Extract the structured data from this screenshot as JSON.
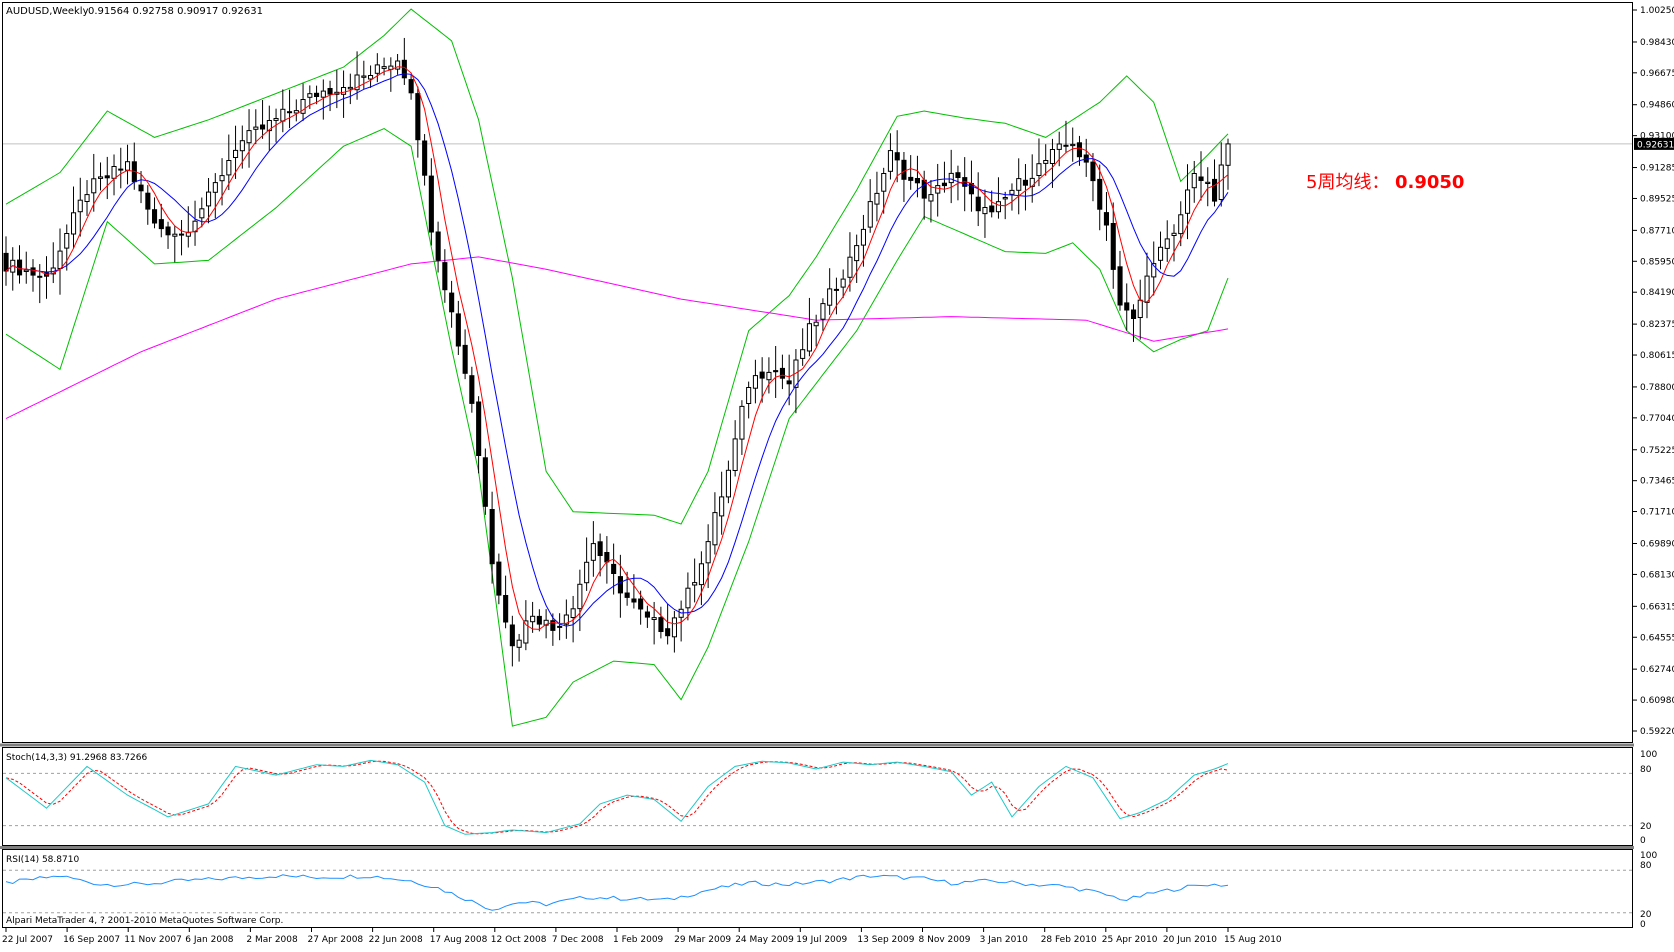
{
  "header": {
    "symbol": "AUDUSD,Weekly",
    "ohlc": "0.91564 0.92758 0.90917 0.92631"
  },
  "annotation": {
    "label": "5周均线：",
    "value": "0.9050",
    "color": "#ff0000"
  },
  "stoch": {
    "label": "Stoch(14,3,3) 91.2968 83.7266",
    "levels": [
      "100",
      "80",
      "20",
      "0"
    ]
  },
  "rsi": {
    "label": "RSI(14) 58.8710",
    "levels": [
      "100",
      "80",
      "20",
      "0"
    ]
  },
  "copyright": "Alpari MetaTrader 4, ? 2001-2010 MetaQuotes Software Corp.",
  "colors": {
    "bull_body": "#ffffff",
    "bear_body": "#000000",
    "ma5": "#ff0000",
    "ma10": "#0000ff",
    "bollinger": "#00c000",
    "ma200": "#ff00ff",
    "stoch_main": "#1ec8c8",
    "stoch_signal": "#ff0000",
    "rsi": "#1e90ff",
    "current_price_line": "#c0c0c0"
  },
  "chart_data": {
    "type": "candlestick",
    "symbol": "AUDUSD",
    "timeframe": "Weekly",
    "price_axis": {
      "ticks": [
        "1.00250",
        "0.98430",
        "0.96675",
        "0.94860",
        "0.93100",
        "0.91285",
        "0.89525",
        "0.87710",
        "0.85950",
        "0.84190",
        "0.82375",
        "0.80615",
        "0.78800",
        "0.77040",
        "0.75225",
        "0.73465",
        "0.71710",
        "0.69890",
        "0.68130",
        "0.66315",
        "0.64555",
        "0.62740",
        "0.60980",
        "0.59220"
      ],
      "ylim": [
        0.5922,
        1.0025
      ],
      "current_price": "0.92631"
    },
    "time_axis": [
      "22 Jul 2007",
      "16 Sep 2007",
      "11 Nov 2007",
      "6 Jan 2008",
      "2 Mar 2008",
      "27 Apr 2008",
      "22 Jun 2008",
      "17 Aug 2008",
      "12 Oct 2008",
      "7 Dec 2008",
      "1 Feb 2009",
      "29 Mar 2009",
      "24 May 2009",
      "19 Jul 2009",
      "13 Sep 2009",
      "8 Nov 2009",
      "3 Jan 2010",
      "28 Feb 2010",
      "25 Apr 2010",
      "20 Jun 2010",
      "15 Aug 2010"
    ],
    "close_anchors": [
      [
        0,
        0.858
      ],
      [
        6,
        0.85
      ],
      [
        12,
        0.9
      ],
      [
        18,
        0.915
      ],
      [
        22,
        0.88
      ],
      [
        26,
        0.875
      ],
      [
        30,
        0.895
      ],
      [
        34,
        0.925
      ],
      [
        38,
        0.935
      ],
      [
        42,
        0.945
      ],
      [
        46,
        0.955
      ],
      [
        50,
        0.96
      ],
      [
        54,
        0.966
      ],
      [
        58,
        0.975
      ],
      [
        60,
        0.958
      ],
      [
        63,
        0.88
      ],
      [
        66,
        0.83
      ],
      [
        69,
        0.78
      ],
      [
        72,
        0.69
      ],
      [
        75,
        0.64
      ],
      [
        78,
        0.66
      ],
      [
        81,
        0.65
      ],
      [
        84,
        0.665
      ],
      [
        87,
        0.7
      ],
      [
        89,
        0.685
      ],
      [
        92,
        0.668
      ],
      [
        95,
        0.655
      ],
      [
        98,
        0.65
      ],
      [
        101,
        0.67
      ],
      [
        104,
        0.7
      ],
      [
        107,
        0.74
      ],
      [
        110,
        0.79
      ],
      [
        113,
        0.8
      ],
      [
        116,
        0.79
      ],
      [
        119,
        0.82
      ],
      [
        122,
        0.84
      ],
      [
        125,
        0.86
      ],
      [
        128,
        0.89
      ],
      [
        131,
        0.92
      ],
      [
        134,
        0.905
      ],
      [
        137,
        0.895
      ],
      [
        140,
        0.91
      ],
      [
        143,
        0.895
      ],
      [
        146,
        0.885
      ],
      [
        149,
        0.9
      ],
      [
        152,
        0.91
      ],
      [
        155,
        0.92
      ],
      [
        158,
        0.928
      ],
      [
        161,
        0.905
      ],
      [
        163,
        0.88
      ],
      [
        165,
        0.835
      ],
      [
        167,
        0.825
      ],
      [
        170,
        0.862
      ],
      [
        173,
        0.873
      ],
      [
        176,
        0.912
      ],
      [
        179,
        0.895
      ],
      [
        181,
        0.926
      ]
    ],
    "moving_average_5": 0.905,
    "ma200_anchors": [
      [
        0,
        0.77
      ],
      [
        20,
        0.808
      ],
      [
        40,
        0.838
      ],
      [
        60,
        0.858
      ],
      [
        70,
        0.862
      ],
      [
        80,
        0.855
      ],
      [
        100,
        0.838
      ],
      [
        120,
        0.826
      ],
      [
        140,
        0.828
      ],
      [
        160,
        0.826
      ],
      [
        170,
        0.814
      ],
      [
        181,
        0.821
      ]
    ],
    "bollinger_anchors": [
      [
        0,
        0.892,
        0.818
      ],
      [
        8,
        0.91,
        0.798
      ],
      [
        15,
        0.945,
        0.882
      ],
      [
        22,
        0.93,
        0.858
      ],
      [
        30,
        0.94,
        0.86
      ],
      [
        40,
        0.955,
        0.89
      ],
      [
        50,
        0.97,
        0.925
      ],
      [
        56,
        0.988,
        0.935
      ],
      [
        60,
        1.003,
        0.925
      ],
      [
        66,
        0.985,
        0.81
      ],
      [
        70,
        0.94,
        0.74
      ],
      [
        75,
        0.85,
        0.595
      ],
      [
        80,
        0.74,
        0.6
      ],
      [
        84,
        0.717,
        0.62
      ],
      [
        90,
        0.716,
        0.632
      ],
      [
        96,
        0.715,
        0.63
      ],
      [
        100,
        0.71,
        0.61
      ],
      [
        104,
        0.74,
        0.64
      ],
      [
        110,
        0.82,
        0.7
      ],
      [
        116,
        0.84,
        0.77
      ],
      [
        120,
        0.862,
        0.79
      ],
      [
        126,
        0.9,
        0.82
      ],
      [
        132,
        0.942,
        0.86
      ],
      [
        136,
        0.945,
        0.885
      ],
      [
        142,
        0.941,
        0.875
      ],
      [
        148,
        0.938,
        0.865
      ],
      [
        154,
        0.93,
        0.864
      ],
      [
        158,
        0.94,
        0.87
      ],
      [
        162,
        0.95,
        0.855
      ],
      [
        166,
        0.965,
        0.82
      ],
      [
        170,
        0.95,
        0.808
      ],
      [
        174,
        0.905,
        0.815
      ],
      [
        178,
        0.92,
        0.82
      ],
      [
        181,
        0.932,
        0.85
      ]
    ],
    "stoch_anchors": [
      [
        0,
        75
      ],
      [
        6,
        40
      ],
      [
        12,
        88
      ],
      [
        18,
        55
      ],
      [
        24,
        30
      ],
      [
        30,
        45
      ],
      [
        34,
        88
      ],
      [
        40,
        78
      ],
      [
        46,
        90
      ],
      [
        50,
        88
      ],
      [
        54,
        95
      ],
      [
        58,
        90
      ],
      [
        62,
        70
      ],
      [
        65,
        20
      ],
      [
        68,
        10
      ],
      [
        72,
        12
      ],
      [
        75,
        15
      ],
      [
        80,
        12
      ],
      [
        85,
        22
      ],
      [
        88,
        45
      ],
      [
        92,
        55
      ],
      [
        96,
        50
      ],
      [
        100,
        25
      ],
      [
        104,
        65
      ],
      [
        108,
        88
      ],
      [
        112,
        94
      ],
      [
        116,
        92
      ],
      [
        120,
        85
      ],
      [
        124,
        93
      ],
      [
        128,
        90
      ],
      [
        132,
        93
      ],
      [
        136,
        88
      ],
      [
        140,
        82
      ],
      [
        143,
        55
      ],
      [
        146,
        70
      ],
      [
        149,
        30
      ],
      [
        153,
        65
      ],
      [
        157,
        88
      ],
      [
        161,
        75
      ],
      [
        165,
        28
      ],
      [
        168,
        35
      ],
      [
        172,
        50
      ],
      [
        176,
        78
      ],
      [
        179,
        85
      ],
      [
        181,
        91
      ]
    ],
    "rsi_anchors": [
      [
        0,
        62
      ],
      [
        8,
        72
      ],
      [
        14,
        60
      ],
      [
        20,
        60
      ],
      [
        26,
        65
      ],
      [
        32,
        68
      ],
      [
        40,
        72
      ],
      [
        46,
        70
      ],
      [
        54,
        72
      ],
      [
        60,
        65
      ],
      [
        64,
        55
      ],
      [
        68,
        40
      ],
      [
        72,
        25
      ],
      [
        76,
        35
      ],
      [
        80,
        32
      ],
      [
        86,
        42
      ],
      [
        92,
        40
      ],
      [
        98,
        38
      ],
      [
        104,
        52
      ],
      [
        110,
        62
      ],
      [
        116,
        60
      ],
      [
        122,
        65
      ],
      [
        128,
        72
      ],
      [
        132,
        70
      ],
      [
        136,
        68
      ],
      [
        140,
        62
      ],
      [
        146,
        65
      ],
      [
        152,
        60
      ],
      [
        156,
        58
      ],
      [
        160,
        52
      ],
      [
        163,
        45
      ],
      [
        166,
        38
      ],
      [
        170,
        48
      ],
      [
        174,
        55
      ],
      [
        178,
        60
      ],
      [
        181,
        58.87
      ]
    ],
    "stoch_value": 91.2968,
    "stoch_signal_value": 83.7266,
    "rsi_value": 58.871
  }
}
